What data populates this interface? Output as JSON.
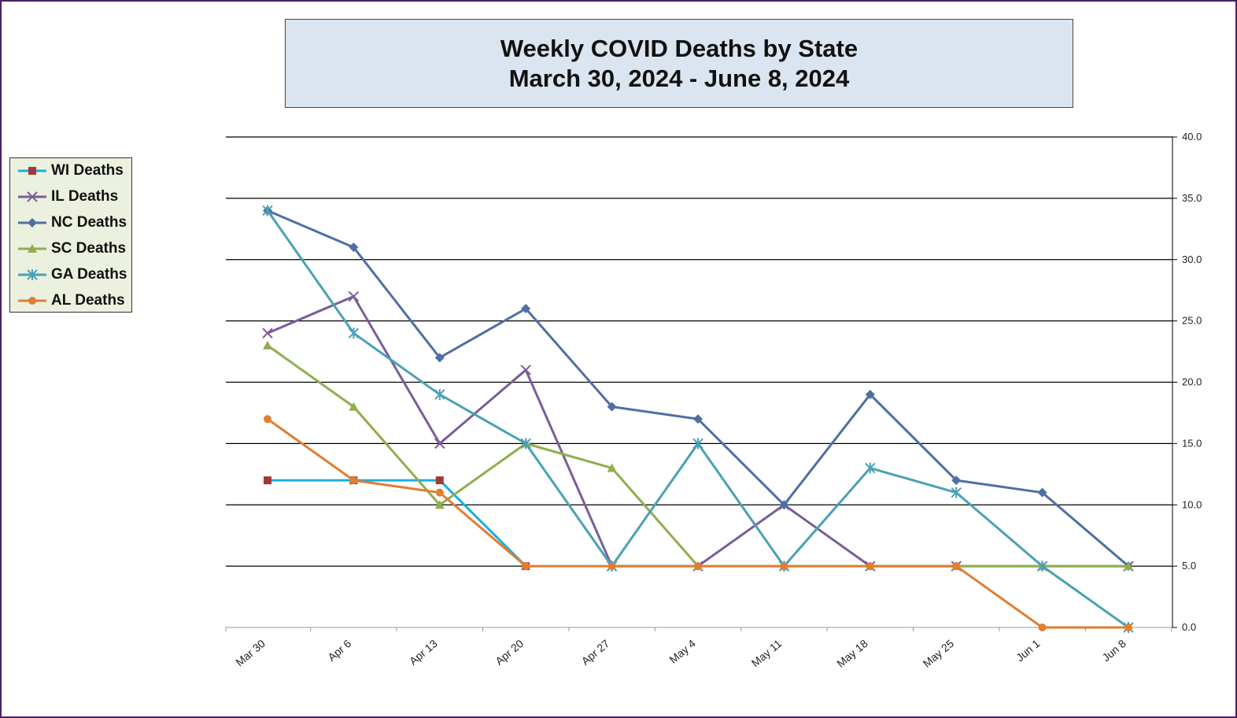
{
  "chart_data": {
    "type": "line",
    "title": "Weekly COVID Deaths by State",
    "subtitle": "March 30, 2024 - June 8, 2024",
    "categories": [
      "Mar 30",
      "Apr 6",
      "Apr 13",
      "Apr 20",
      "Apr 27",
      "May 4",
      "May 11",
      "May 18",
      "May 25",
      "Jun 1",
      "Jun 8"
    ],
    "ylim": [
      0,
      40
    ],
    "yticks": [
      "0.0",
      "5.0",
      "10.0",
      "15.0",
      "20.0",
      "25.0",
      "30.0",
      "35.0",
      "40.0"
    ],
    "y_axis_side": "right",
    "grid": true,
    "legend_position": "left",
    "series": [
      {
        "name": "WI Deaths",
        "color": "#1aaee0",
        "marker_color": "#a03a3a",
        "marker": "square",
        "values": [
          12,
          12,
          12,
          5,
          null,
          null,
          null,
          null,
          null,
          null,
          null
        ]
      },
      {
        "name": "IL Deaths",
        "color": "#7a5d9a",
        "marker_color": "#7a5d9a",
        "marker": "x",
        "values": [
          24,
          27,
          15,
          21,
          5,
          5,
          10,
          5,
          5,
          5,
          5
        ]
      },
      {
        "name": "NC Deaths",
        "color": "#4f6fa3",
        "marker_color": "#4f6fa3",
        "marker": "diamond",
        "values": [
          34,
          31,
          22,
          26,
          18,
          17,
          10,
          19,
          12,
          11,
          5
        ]
      },
      {
        "name": "SC Deaths",
        "color": "#8fae4e",
        "marker_color": "#8fae4e",
        "marker": "triangle",
        "values": [
          23,
          18,
          10,
          15,
          13,
          5,
          5,
          5,
          5,
          5,
          5
        ]
      },
      {
        "name": "GA Deaths",
        "color": "#4aa1b5",
        "marker_color": "#4aa1b5",
        "marker": "star",
        "values": [
          34,
          24,
          19,
          15,
          5,
          15,
          5,
          13,
          11,
          5,
          0
        ]
      },
      {
        "name": "AL Deaths",
        "color": "#e07e32",
        "marker_color": "#e07e32",
        "marker": "circle",
        "values": [
          17,
          12,
          11,
          5,
          5,
          5,
          5,
          5,
          5,
          0,
          0
        ]
      }
    ]
  }
}
